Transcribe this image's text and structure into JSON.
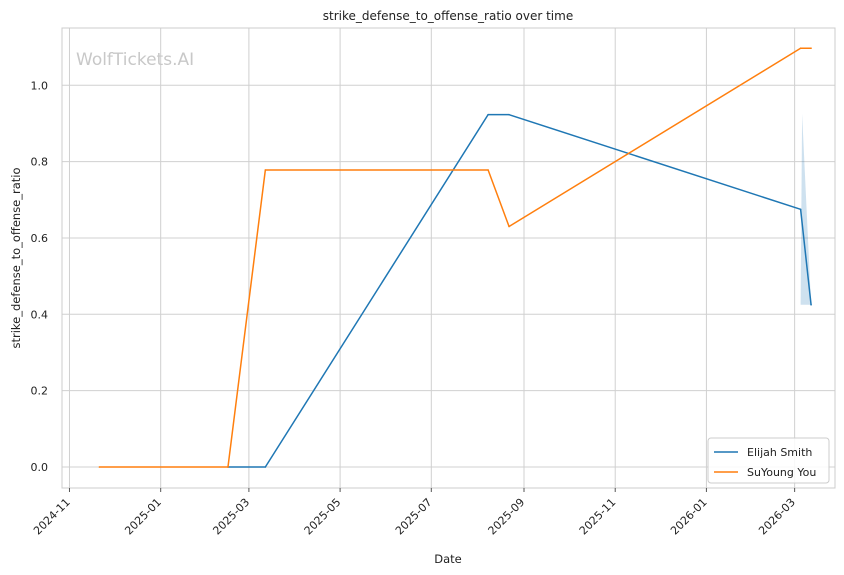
{
  "chart_data": {
    "type": "line",
    "title": "strike_defense_to_offense_ratio over time",
    "xlabel": "Date",
    "ylabel": "strike_defense_to_offense_ratio",
    "watermark": "WolfTickets.AI",
    "x_ticks": [
      "2024-11",
      "2025-01",
      "2025-03",
      "2025-05",
      "2025-07",
      "2025-09",
      "2025-11",
      "2026-01",
      "2026-03"
    ],
    "y_ticks": [
      "0.0",
      "0.2",
      "0.4",
      "0.6",
      "0.8",
      "1.0"
    ],
    "xlim": [
      "2024-10-27",
      "2026-03-28"
    ],
    "ylim": [
      -0.055,
      1.15
    ],
    "grid": true,
    "legend": "bottom-right",
    "series": [
      {
        "name": "Elijah Smith",
        "color": "#1f77b4",
        "points": [
          {
            "x": "2025-02-15",
            "y": 0.0
          },
          {
            "x": "2025-03-12",
            "y": 0.0
          },
          {
            "x": "2025-08-08",
            "y": 0.923
          },
          {
            "x": "2025-08-22",
            "y": 0.923
          },
          {
            "x": "2026-03-05",
            "y": 0.675
          },
          {
            "x": "2026-03-12",
            "y": 0.425
          }
        ],
        "band": {
          "x": [
            "2026-03-05",
            "2026-03-06",
            "2026-03-12"
          ],
          "lower": [
            0.425,
            0.425,
            0.425
          ],
          "upper": [
            0.425,
            0.925,
            0.425
          ]
        }
      },
      {
        "name": "SuYoung You",
        "color": "#ff7f0e",
        "points": [
          {
            "x": "2024-11-21",
            "y": 0.0
          },
          {
            "x": "2025-02-15",
            "y": 0.0
          },
          {
            "x": "2025-03-12",
            "y": 0.778
          },
          {
            "x": "2025-08-08",
            "y": 0.778
          },
          {
            "x": "2025-08-22",
            "y": 0.63
          },
          {
            "x": "2026-03-05",
            "y": 1.097
          },
          {
            "x": "2026-03-12",
            "y": 1.097
          }
        ]
      }
    ]
  }
}
